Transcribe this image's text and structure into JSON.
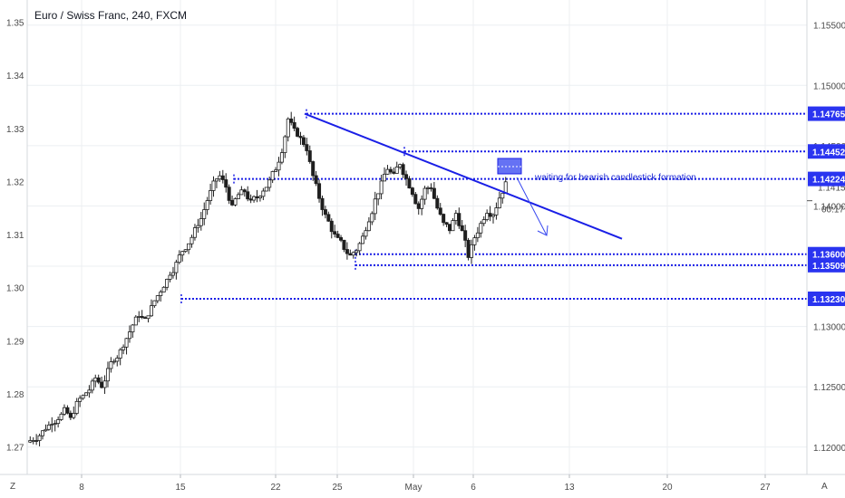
{
  "colors": {
    "line_blue": "#1a1fe6",
    "tag_blue": "#2a34f0",
    "candle": "#1f1f1f",
    "grid": "#eceff2",
    "axis_text": "#4a4a4a"
  },
  "chart_data": {
    "type": "candlestick",
    "title": "Euro / Swiss Franc, 240, FXCM",
    "left_axis": {
      "ticks": [
        "1.35",
        "1.34",
        "1.33",
        "1.32",
        "1.31",
        "1.30",
        "1.29",
        "1.28",
        "1.27"
      ],
      "range": [
        1.2648,
        1.3542
      ]
    },
    "right_axis": {
      "ticks": [
        "1.15500",
        "1.15000",
        "1.14500",
        "1.14000",
        "1.13500",
        "1.13000",
        "1.12500",
        "1.12000"
      ],
      "range": [
        1.11773,
        1.15708
      ],
      "current_price": "1.14156",
      "countdown": "00:17"
    },
    "x_axis": {
      "ticks": [
        "8",
        "15",
        "22",
        "25",
        "May",
        "6",
        "13",
        "20",
        "27"
      ],
      "scale_label_left": "Z",
      "scale_label_right": "A"
    },
    "horizontal_levels": [
      {
        "price": "1.14765",
        "value": 1.14765
      },
      {
        "price": "1.14452",
        "value": 1.14452
      },
      {
        "price": "1.14224",
        "value": 1.14224
      },
      {
        "price": "1.13600",
        "value": 1.136
      },
      {
        "price": "1.13509",
        "value": 1.13509
      },
      {
        "price": "1.13230",
        "value": 1.1323
      }
    ],
    "trendline": {
      "from": 1.14765,
      "to": 1.13728
    },
    "annotation": "waiting for bearish candlestick formation",
    "price_path": [
      1.2715,
      1.2722,
      1.2736,
      1.2748,
      1.2755,
      1.2768,
      1.2752,
      1.2781,
      1.2795,
      1.2808,
      1.283,
      1.2815,
      1.2842,
      1.2867,
      1.288,
      1.2905,
      1.293,
      1.295,
      1.2938,
      1.2962,
      1.2985,
      1.3005,
      1.3028,
      1.3045,
      1.307,
      1.3085,
      1.3108,
      1.313,
      1.3165,
      1.3195,
      1.321,
      1.319,
      1.315,
      1.3175,
      1.3182,
      1.316,
      1.317,
      1.3185,
      1.32,
      1.3225,
      1.326,
      1.3318,
      1.3295,
      1.328,
      1.3262,
      1.321,
      1.317,
      1.3135,
      1.311,
      1.309,
      1.3075,
      1.306,
      1.3072,
      1.3095,
      1.313,
      1.3165,
      1.3195,
      1.3225,
      1.321,
      1.3235,
      1.3205,
      1.318,
      1.315,
      1.3185,
      1.319,
      1.315,
      1.312,
      1.311,
      1.314,
      1.3105,
      1.306,
      1.3095,
      1.312,
      1.3145,
      1.314,
      1.317,
      1.3195
    ]
  }
}
